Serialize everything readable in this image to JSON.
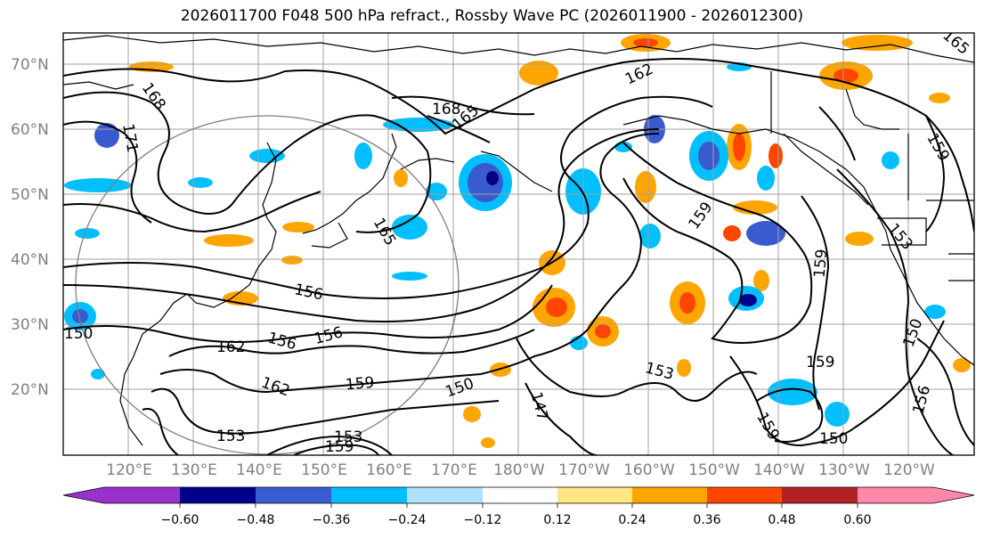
{
  "title": "2026011700 F048 500 hPa refract., Rossby Wave PC (2026011900 - 2026012300)",
  "lat_labels": [
    "70°N",
    "60°N",
    "50°N",
    "40°N",
    "30°N",
    "20°N"
  ],
  "lon_labels": [
    "120°E",
    "130°E",
    "140°E",
    "150°E",
    "160°E",
    "170°E",
    "180°W",
    "170°W",
    "160°W",
    "150°W",
    "140°W",
    "130°W",
    "120°W"
  ],
  "colorbar": {
    "ticks": [
      "−0.60",
      "−0.48",
      "−0.36",
      "−0.24",
      "−0.12",
      "0.12",
      "0.24",
      "0.36",
      "0.48",
      "0.60"
    ],
    "colors": [
      "#9932cc",
      "#00008b",
      "#3a5bd0",
      "#00bfff",
      "#b0e0ff",
      "#ffffff",
      "#ffe680",
      "#ffa500",
      "#ff4500",
      "#b22222",
      "#ff88aa"
    ]
  },
  "contour_labels": [
    "168",
    "171",
    "168",
    "165",
    "162",
    "165",
    "159",
    "153",
    "159",
    "150",
    "156",
    "156",
    "156",
    "162",
    "162",
    "159",
    "150",
    "147",
    "153",
    "159",
    "159",
    "150",
    "159",
    "156",
    "150",
    "153",
    "159",
    "153",
    "165"
  ],
  "colors": {
    "contour": "#000000",
    "grid": "#a0a0a0",
    "coast": "#000000",
    "circle": "#808080"
  }
}
